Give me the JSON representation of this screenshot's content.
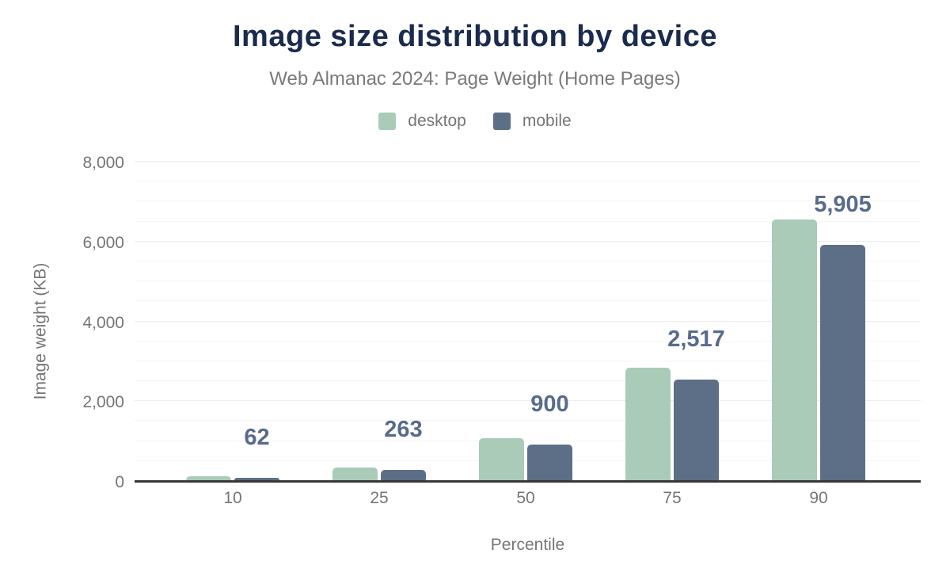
{
  "header": {
    "title": "Image size distribution by device",
    "subtitle": "Web Almanac 2024: Page Weight (Home Pages)"
  },
  "legend": {
    "items": [
      {
        "label": "desktop",
        "color": "#a9cbb8"
      },
      {
        "label": "mobile",
        "color": "#5d6f87"
      }
    ]
  },
  "chart_data": {
    "type": "bar",
    "title": "Image size distribution by device",
    "subtitle": "Web Almanac 2024: Page Weight (Home Pages)",
    "xlabel": "Percentile",
    "ylabel": "Image weight (KB)",
    "categories": [
      "10",
      "25",
      "50",
      "75",
      "90"
    ],
    "series": [
      {
        "name": "desktop",
        "color": "#a9cbb8",
        "values": [
          100,
          320,
          1050,
          2820,
          6540
        ]
      },
      {
        "name": "mobile",
        "color": "#5d6f87",
        "values": [
          62,
          263,
          900,
          2517,
          5905
        ],
        "labels": [
          "62",
          "263",
          "900",
          "2,517",
          "5,905"
        ]
      }
    ],
    "ylim": [
      0,
      8000
    ],
    "yticks": [
      {
        "value": 0,
        "label": "0"
      },
      {
        "value": 2000,
        "label": "2,000"
      },
      {
        "value": 4000,
        "label": "4,000"
      },
      {
        "value": 6000,
        "label": "6,000"
      },
      {
        "value": 8000,
        "label": "8,000"
      }
    ],
    "y_minor_step": 500,
    "grid": "horizontal-major-and-minor",
    "legend_position": "top",
    "value_labels_series": "mobile"
  },
  "colors": {
    "title": "#1a2b4d",
    "subtitle": "#7a7a7a",
    "axis_text": "#757575",
    "value_label": "#586b8c",
    "axis_line": "#37373a",
    "grid_major": "#ececec",
    "grid_minor": "#f5f5f5",
    "background": "#ffffff"
  }
}
